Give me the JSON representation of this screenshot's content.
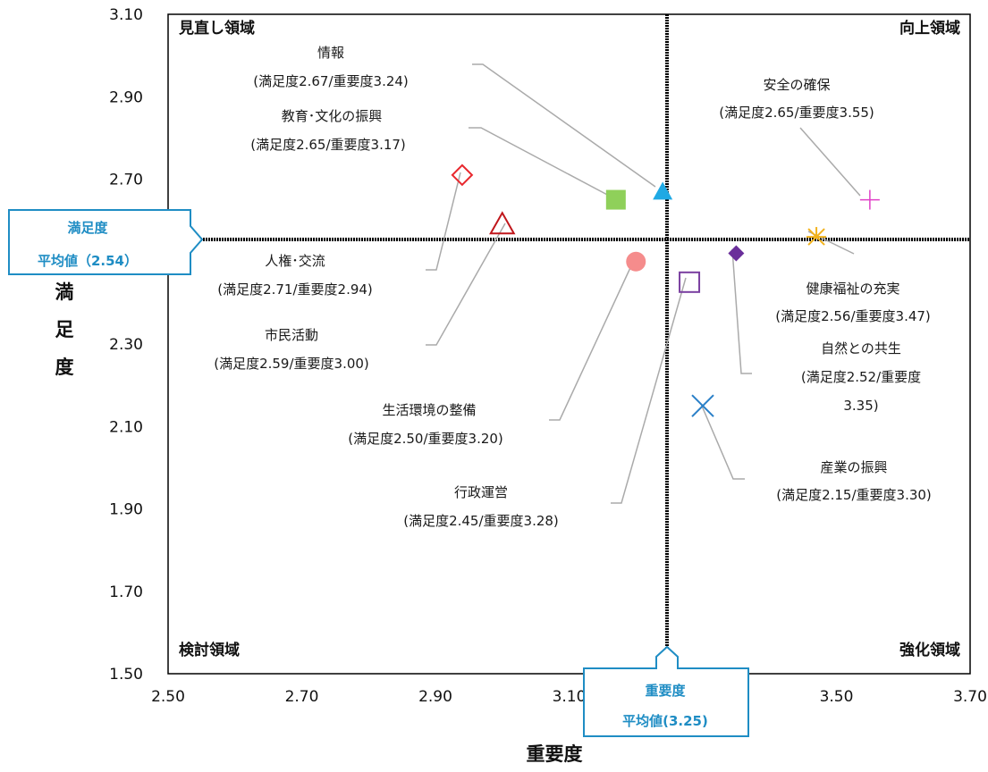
{
  "chart_data": {
    "type": "scatter",
    "xlabel": "重要度",
    "ylabel": "満足度",
    "xlim": [
      2.5,
      3.7
    ],
    "ylim": [
      1.5,
      3.1
    ],
    "x_ticks": [
      "2.50",
      "2.70",
      "2.90",
      "3.10",
      "3.30",
      "3.50",
      "3.70"
    ],
    "y_ticks": [
      "1.50",
      "1.70",
      "1.90",
      "2.10",
      "2.30",
      "2.50",
      "2.70",
      "2.90",
      "3.10"
    ],
    "x_tick_values": [
      2.5,
      2.7,
      2.9,
      3.1,
      3.3,
      3.5,
      3.7
    ],
    "y_tick_values": [
      1.5,
      1.7,
      1.9,
      2.1,
      2.3,
      2.5,
      2.7,
      2.9,
      3.1
    ],
    "quadrants": {
      "top_left": "見直し領域",
      "top_right": "向上領域",
      "bottom_left": "検討領域",
      "bottom_right": "強化領域"
    },
    "avg_x": {
      "value": 3.25,
      "line1": "重要度",
      "line2": "平均値(3.25)"
    },
    "avg_y": {
      "value": 2.54,
      "line1": "満足度",
      "line2": "平均値（2.54）"
    },
    "points": [
      {
        "name": "情報",
        "sub": "(満足度2.67/重要度3.24)",
        "x": 3.24,
        "y": 2.67,
        "marker": "triangle-filled",
        "color": "#1fa9e4"
      },
      {
        "name": "教育･文化の振興",
        "sub": "(満足度2.65/重要度3.17)",
        "x": 3.17,
        "y": 2.65,
        "marker": "square-filled",
        "color": "#8fd05a"
      },
      {
        "name": "人権･交流",
        "sub": "(満足度2.71/重要度2.94)",
        "x": 2.94,
        "y": 2.71,
        "marker": "diamond-open",
        "color": "#e8282e"
      },
      {
        "name": "市民活動",
        "sub": "(満足度2.59/重要度3.00)",
        "x": 3.0,
        "y": 2.59,
        "marker": "triangle-open",
        "color": "#c0161b"
      },
      {
        "name": "生活環境の整備",
        "sub": "(満足度2.50/重要度3.20)",
        "x": 3.2,
        "y": 2.5,
        "marker": "circle-filled",
        "color": "#f58c8c"
      },
      {
        "name": "行政運営",
        "sub": "(満足度2.45/重要度3.28)",
        "x": 3.28,
        "y": 2.45,
        "marker": "square-open",
        "color": "#7a3fa0"
      },
      {
        "name": "安全の確保",
        "sub": "(満足度2.65/重要度3.55)",
        "x": 3.55,
        "y": 2.65,
        "marker": "plus",
        "color": "#e040c8"
      },
      {
        "name": "健康福祉の充実",
        "sub": "(満足度2.56/重要度3.47)",
        "x": 3.47,
        "y": 2.56,
        "marker": "star",
        "color": "#f2b21c"
      },
      {
        "name": "自然との共生",
        "sub": "(満足度2.52/重要度",
        "sub2": "3.35)",
        "x": 3.35,
        "y": 2.52,
        "marker": "diamond-filled",
        "color": "#6a2e9a"
      },
      {
        "name": "産業の振興",
        "sub": "(満足度2.15/重要度3.30)",
        "x": 3.3,
        "y": 2.15,
        "marker": "cross",
        "color": "#2a80c8"
      }
    ]
  }
}
